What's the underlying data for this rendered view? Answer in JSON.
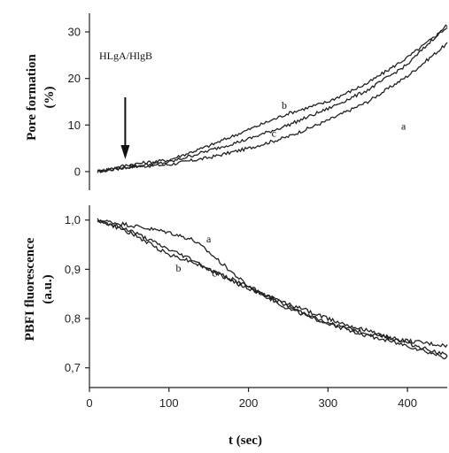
{
  "chart_data": [
    {
      "type": "line",
      "ylabel_line1": "Pore formation",
      "ylabel_line2": "(%)",
      "ylim": [
        -4,
        34
      ],
      "yticks": [
        0,
        10,
        20,
        30
      ],
      "ytick_labels": [
        "0",
        "10",
        "20",
        "30"
      ],
      "annotation": {
        "text": "HLgA/HlgB",
        "x": 45
      },
      "series": [
        {
          "name": "a",
          "x": [
            10,
            50,
            100,
            150,
            200,
            250,
            300,
            350,
            400,
            450
          ],
          "y": [
            0,
            1,
            1.5,
            3,
            5,
            7.5,
            11,
            15,
            20.5,
            27.5
          ]
        },
        {
          "name": "b",
          "x": [
            10,
            50,
            100,
            150,
            200,
            250,
            300,
            350,
            400,
            450
          ],
          "y": [
            0,
            1.5,
            2.5,
            5.5,
            9,
            12.5,
            15,
            19,
            24.5,
            31
          ]
        },
        {
          "name": "c",
          "x": [
            10,
            50,
            100,
            150,
            200,
            250,
            300,
            350,
            400,
            450
          ],
          "y": [
            0,
            1,
            2,
            4.5,
            7,
            10,
            13.5,
            17.5,
            23,
            31.5
          ]
        }
      ],
      "labels": [
        {
          "text": "a",
          "x": 395,
          "y": 9
        },
        {
          "text": "b",
          "x": 245,
          "y": 13.5
        },
        {
          "text": "c",
          "x": 232,
          "y": 7.5
        }
      ]
    },
    {
      "type": "line",
      "ylabel_line1": "PBFI fluorescence",
      "ylabel_line2": "(a.u.)",
      "ylim": [
        0.66,
        1.03
      ],
      "yticks": [
        0.7,
        0.8,
        0.9,
        1.0
      ],
      "ytick_labels": [
        "0,7",
        "0,8",
        "0,9",
        "1,0"
      ],
      "xlabel": "t (sec)",
      "xlim": [
        0,
        450
      ],
      "xticks": [
        0,
        100,
        200,
        300,
        400
      ],
      "xtick_labels": [
        "0",
        "100",
        "200",
        "300",
        "400"
      ],
      "series": [
        {
          "name": "a",
          "x": [
            10,
            50,
            100,
            130,
            150,
            200,
            250,
            300,
            350,
            400,
            450
          ],
          "y": [
            1.0,
            0.99,
            0.975,
            0.96,
            0.935,
            0.865,
            0.82,
            0.79,
            0.77,
            0.755,
            0.745
          ]
        },
        {
          "name": "b",
          "x": [
            10,
            50,
            100,
            130,
            150,
            200,
            250,
            300,
            350,
            400,
            450
          ],
          "y": [
            1.0,
            0.975,
            0.93,
            0.915,
            0.9,
            0.86,
            0.83,
            0.8,
            0.775,
            0.75,
            0.725
          ]
        },
        {
          "name": "c",
          "x": [
            10,
            50,
            100,
            130,
            150,
            200,
            250,
            300,
            350,
            400,
            450
          ],
          "y": [
            1.0,
            0.98,
            0.94,
            0.92,
            0.9,
            0.865,
            0.825,
            0.79,
            0.765,
            0.745,
            0.72
          ]
        }
      ],
      "labels": [
        {
          "text": "a",
          "x": 150,
          "y": 0.955
        },
        {
          "text": "b",
          "x": 112,
          "y": 0.895
        },
        {
          "text": "c",
          "x": 157,
          "y": 0.885
        }
      ]
    }
  ]
}
